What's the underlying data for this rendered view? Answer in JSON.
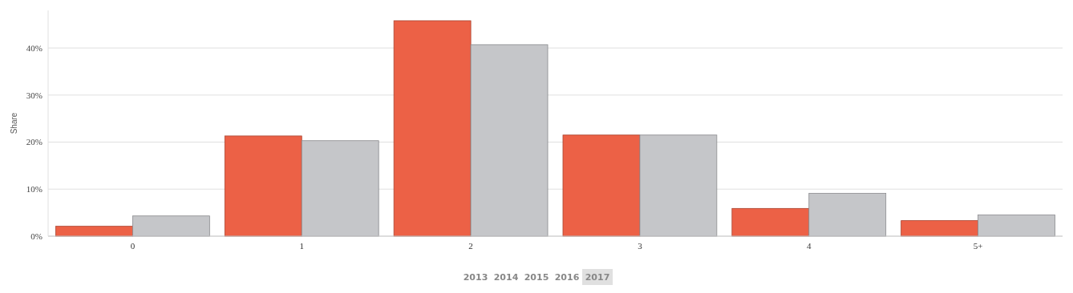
{
  "chart_data": {
    "type": "bar",
    "ylabel": "Share",
    "categories": [
      "0",
      "1",
      "2",
      "3",
      "4",
      "5+"
    ],
    "series": [
      {
        "color": "#ec6146",
        "values": [
          2.1,
          21.3,
          45.8,
          21.5,
          5.9,
          3.3
        ]
      },
      {
        "color": "#c5c6c9",
        "values": [
          4.3,
          20.3,
          40.7,
          21.5,
          9.1,
          4.5
        ]
      }
    ],
    "ylim": [
      0,
      48
    ],
    "yticks": [
      {
        "value": 0,
        "label": "0%"
      },
      {
        "value": 10,
        "label": "10%"
      },
      {
        "value": 20,
        "label": "20%"
      },
      {
        "value": 30,
        "label": "30%"
      },
      {
        "value": 40,
        "label": "40%"
      }
    ],
    "grid": "y",
    "annotations": [
      "2013",
      "2014",
      "2015",
      "2016",
      "2017"
    ]
  }
}
